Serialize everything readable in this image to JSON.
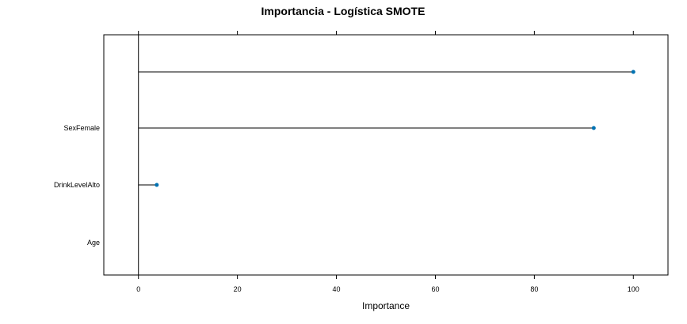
{
  "chart_data": {
    "type": "dotplot",
    "title": "Importancia - Logística SMOTE",
    "xlabel": "Importance",
    "ylabel": "",
    "xlim": [
      -7,
      107
    ],
    "x_ticks": [
      0,
      20,
      40,
      60,
      80,
      100
    ],
    "categories": [
      "",
      "SexFemale",
      "DrinkLevelAlto",
      "Age"
    ],
    "values": [
      100,
      92,
      3.7,
      0
    ],
    "point_color": "#0072B2",
    "line_color": "#000000",
    "grid": false,
    "legend": "none"
  }
}
